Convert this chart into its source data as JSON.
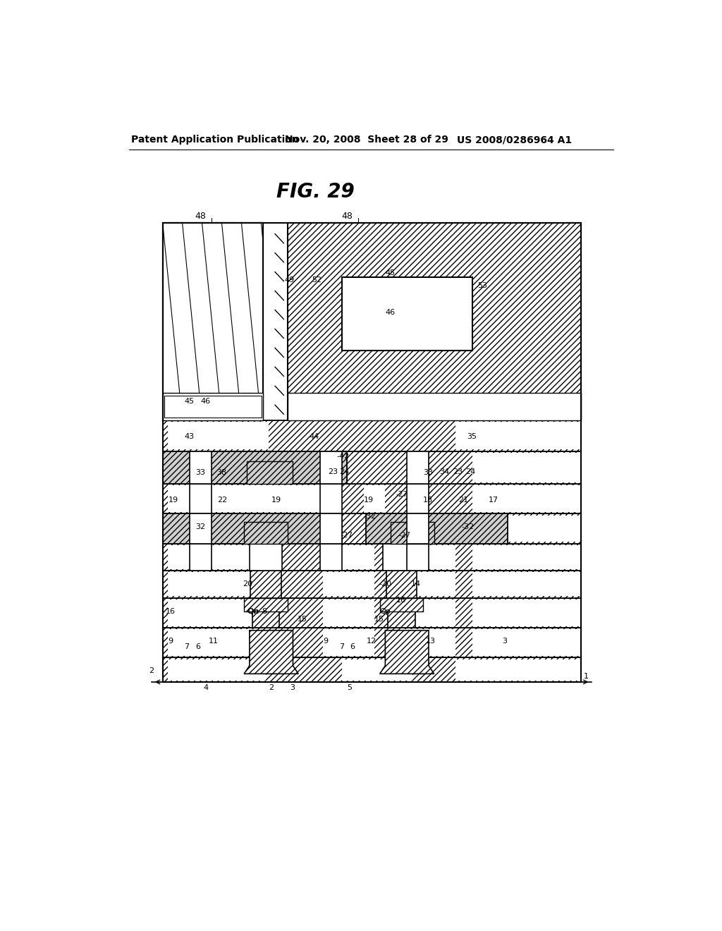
{
  "title": "FIG. 29",
  "header_left": "Patent Application Publication",
  "header_mid": "Nov. 20, 2008  Sheet 28 of 29",
  "header_right": "US 2008/0286964 A1",
  "bg_color": "#ffffff"
}
